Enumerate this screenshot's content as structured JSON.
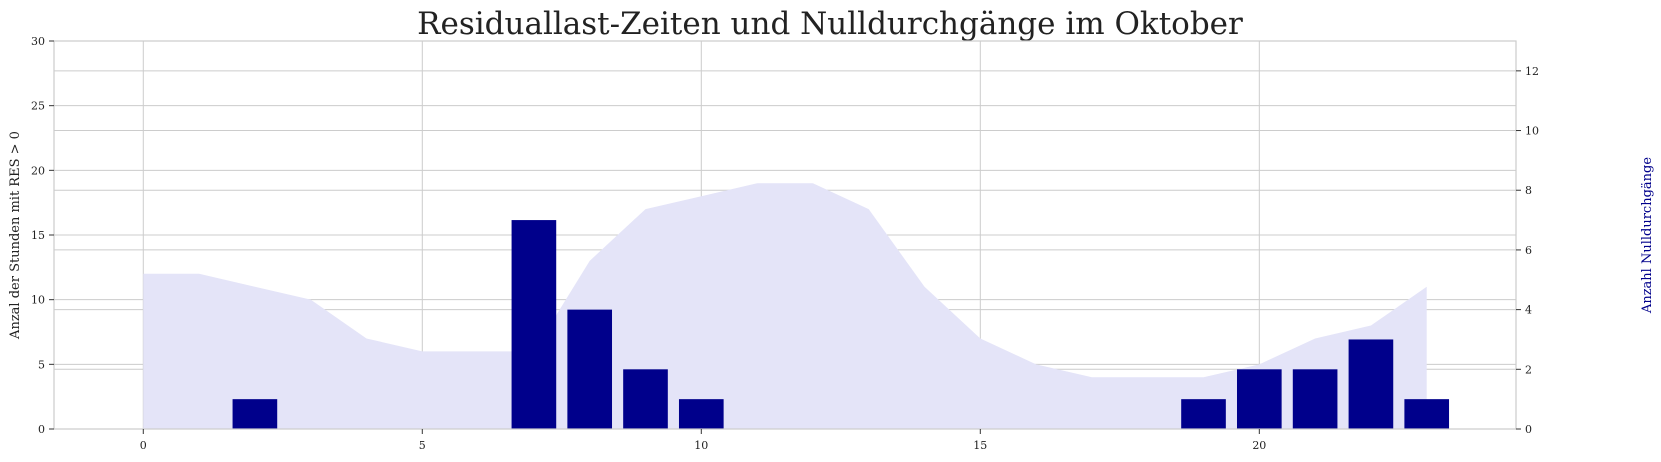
{
  "chart_data": {
    "type": "bar",
    "title": "Residuallast-Zeiten und Nulldurchgänge im Oktober",
    "x": [
      0,
      1,
      2,
      3,
      4,
      5,
      6,
      7,
      8,
      9,
      10,
      11,
      12,
      13,
      14,
      15,
      16,
      17,
      18,
      19,
      20,
      21,
      22,
      23
    ],
    "xlim": [
      -1.6,
      24.6
    ],
    "xticks": [
      0,
      5,
      10,
      15,
      20
    ],
    "area_series": {
      "ylabel": "Anzal der Stunden mit RES > 0",
      "values": [
        12,
        12,
        11,
        10,
        7,
        6,
        6,
        6,
        13,
        17,
        18,
        19,
        19,
        17,
        11,
        7,
        5,
        4,
        4,
        4,
        5,
        7,
        8,
        11
      ],
      "ylim": [
        0,
        30
      ],
      "yticks": [
        0,
        5,
        10,
        15,
        20,
        25,
        30
      ],
      "color": "#e4e4f8"
    },
    "bar_series": {
      "ylabel": "Anzahl Nulldurchgänge",
      "x": [
        2,
        7,
        8,
        9,
        10,
        19,
        20,
        21,
        22,
        23
      ],
      "values": [
        1,
        7,
        4,
        2,
        1,
        1,
        2,
        2,
        3,
        1
      ],
      "ylim": [
        0,
        13
      ],
      "yticks": [
        0,
        2,
        4,
        6,
        8,
        10,
        12
      ],
      "color": "#00008b"
    },
    "grid": true
  }
}
